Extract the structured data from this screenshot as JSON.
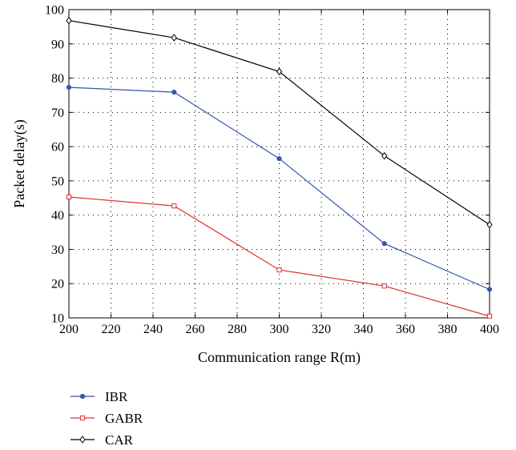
{
  "chart_data": {
    "type": "line",
    "title": "",
    "xlabel": "Communication range R(m)",
    "ylabel": "Packet delay(s)",
    "xlim": [
      200,
      400
    ],
    "ylim": [
      10,
      100
    ],
    "xticks": [
      200,
      220,
      240,
      260,
      280,
      300,
      320,
      340,
      360,
      380,
      400
    ],
    "yticks": [
      10,
      20,
      30,
      40,
      50,
      60,
      70,
      80,
      90,
      100
    ],
    "grid": true,
    "legend_position": "below-left",
    "x": [
      200,
      250,
      300,
      350,
      400
    ],
    "series": [
      {
        "name": "IBR",
        "color": "#3355aa",
        "marker": "circle",
        "values": [
          77.3,
          75.9,
          56.5,
          31.7,
          18.3
        ]
      },
      {
        "name": "GABR",
        "color": "#e03030",
        "marker": "square",
        "values": [
          45.3,
          42.7,
          24.0,
          19.3,
          10.5
        ]
      },
      {
        "name": "CAR",
        "color": "#000000",
        "marker": "diamond",
        "values": [
          96.8,
          91.8,
          81.9,
          57.3,
          37.2
        ]
      }
    ]
  }
}
